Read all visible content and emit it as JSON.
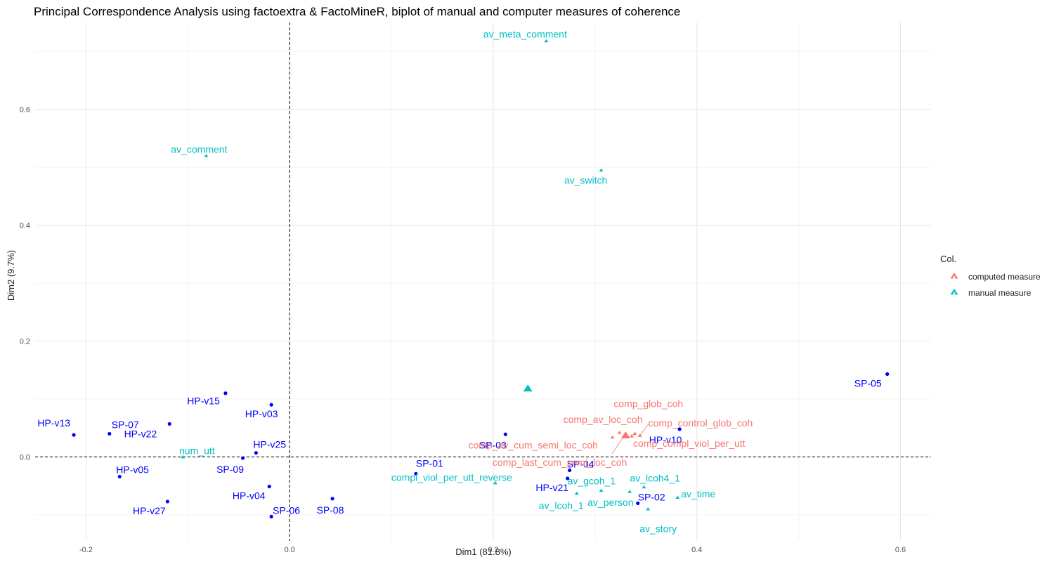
{
  "chart_data": {
    "type": "scatter",
    "title": "Principal Correspondence Analysis using factoextra & FactoMineR, biplot of manual and computer measures of coherence",
    "xlabel": "Dim1 (81.8%)",
    "ylabel": "Dim2 (9.7%)",
    "xlim": [
      -0.25,
      0.63
    ],
    "ylim": [
      -0.145,
      0.75
    ],
    "xticks": [
      -0.2,
      0.0,
      0.2,
      0.4,
      0.6
    ],
    "yticks": [
      0.0,
      0.2,
      0.4,
      0.6
    ],
    "xtick_labels": [
      "-0.2",
      "0.0",
      "0.2",
      "0.4",
      "0.6"
    ],
    "ytick_labels": [
      "0.0",
      "0.2",
      "0.4",
      "0.6"
    ],
    "grid": true,
    "reference_lines": {
      "x": 0.0,
      "y": 0.0,
      "style": "dashed"
    },
    "colors": {
      "rows": "#0000ff",
      "computed": "#f8766d",
      "manual": "#00bfc4"
    },
    "legend": {
      "title": "Col.",
      "placement": "right",
      "entries": [
        {
          "label": "computed measure",
          "color": "#f8766d"
        },
        {
          "label": "manual measure",
          "color": "#00bfc4"
        }
      ]
    },
    "row_points": [
      {
        "label": "SP-05",
        "x": 0.587,
        "y": 0.143
      },
      {
        "label": "HP-v13",
        "x": -0.212,
        "y": 0.038
      },
      {
        "label": "SP-07",
        "x": -0.177,
        "y": 0.04
      },
      {
        "label": "HP-v22",
        "x": -0.118,
        "y": 0.057
      },
      {
        "label": "HP-v15",
        "x": -0.063,
        "y": 0.11
      },
      {
        "label": "HP-v03",
        "x": -0.018,
        "y": 0.09
      },
      {
        "label": "HP-v25",
        "x": -0.033,
        "y": 0.007
      },
      {
        "label": "SP-09",
        "x": -0.046,
        "y": -0.002
      },
      {
        "label": "HP-v05",
        "x": -0.167,
        "y": -0.034
      },
      {
        "label": "HP-v27",
        "x": -0.12,
        "y": -0.077
      },
      {
        "label": "HP-v04",
        "x": -0.02,
        "y": -0.051
      },
      {
        "label": "SP-06",
        "x": -0.018,
        "y": -0.103
      },
      {
        "label": "SP-08",
        "x": 0.042,
        "y": -0.072
      },
      {
        "label": "SP-01",
        "x": 0.124,
        "y": -0.029
      },
      {
        "label": "SP-03",
        "x": 0.212,
        "y": 0.039
      },
      {
        "label": "SP-04",
        "x": 0.275,
        "y": -0.023
      },
      {
        "label": "HP-v21",
        "x": 0.273,
        "y": -0.037
      },
      {
        "label": "HP-v10",
        "x": 0.383,
        "y": 0.048
      },
      {
        "label": "SP-02",
        "x": 0.342,
        "y": -0.08
      }
    ],
    "computed_points": [
      {
        "label": "comp_glob_coh",
        "x": 0.339,
        "y": 0.04
      },
      {
        "label": "comp_av_loc_coh",
        "x": 0.324,
        "y": 0.042
      },
      {
        "label": "comp_control_glob_coh",
        "x": 0.344,
        "y": 0.037
      },
      {
        "label": "comp_compl_viol_per_utt",
        "x": 0.336,
        "y": 0.036
      },
      {
        "label": "comp_av_cum_semi_loc_coh",
        "x": 0.317,
        "y": 0.034
      },
      {
        "label": "comp_last_cum_semi_loc_coh",
        "x": 0.329,
        "y": 0.037
      }
    ],
    "manual_points": [
      {
        "label": "av_meta_comment",
        "x": 0.252,
        "y": 0.718
      },
      {
        "label": "av_comment",
        "x": -0.082,
        "y": 0.52
      },
      {
        "label": "av_switch",
        "x": 0.306,
        "y": 0.495
      },
      {
        "label": "num_utt",
        "x": -0.105,
        "y": 0.0
      },
      {
        "label": "compl_viol_per_utt_reverse",
        "x": 0.202,
        "y": -0.045
      },
      {
        "label": "av_lcoh4_1",
        "x": 0.348,
        "y": -0.052
      },
      {
        "label": "av_time",
        "x": 0.381,
        "y": -0.07
      },
      {
        "label": "av_gcoh_1",
        "x": 0.306,
        "y": -0.058
      },
      {
        "label": "av_lcoh_1",
        "x": 0.282,
        "y": -0.063
      },
      {
        "label": "av_person",
        "x": 0.334,
        "y": -0.06
      },
      {
        "label": "av_story",
        "x": 0.352,
        "y": -0.09
      }
    ],
    "centroids": [
      {
        "group": "computed measure",
        "x": 0.33,
        "y": 0.037
      },
      {
        "group": "manual measure",
        "x": 0.234,
        "y": 0.118
      }
    ]
  }
}
